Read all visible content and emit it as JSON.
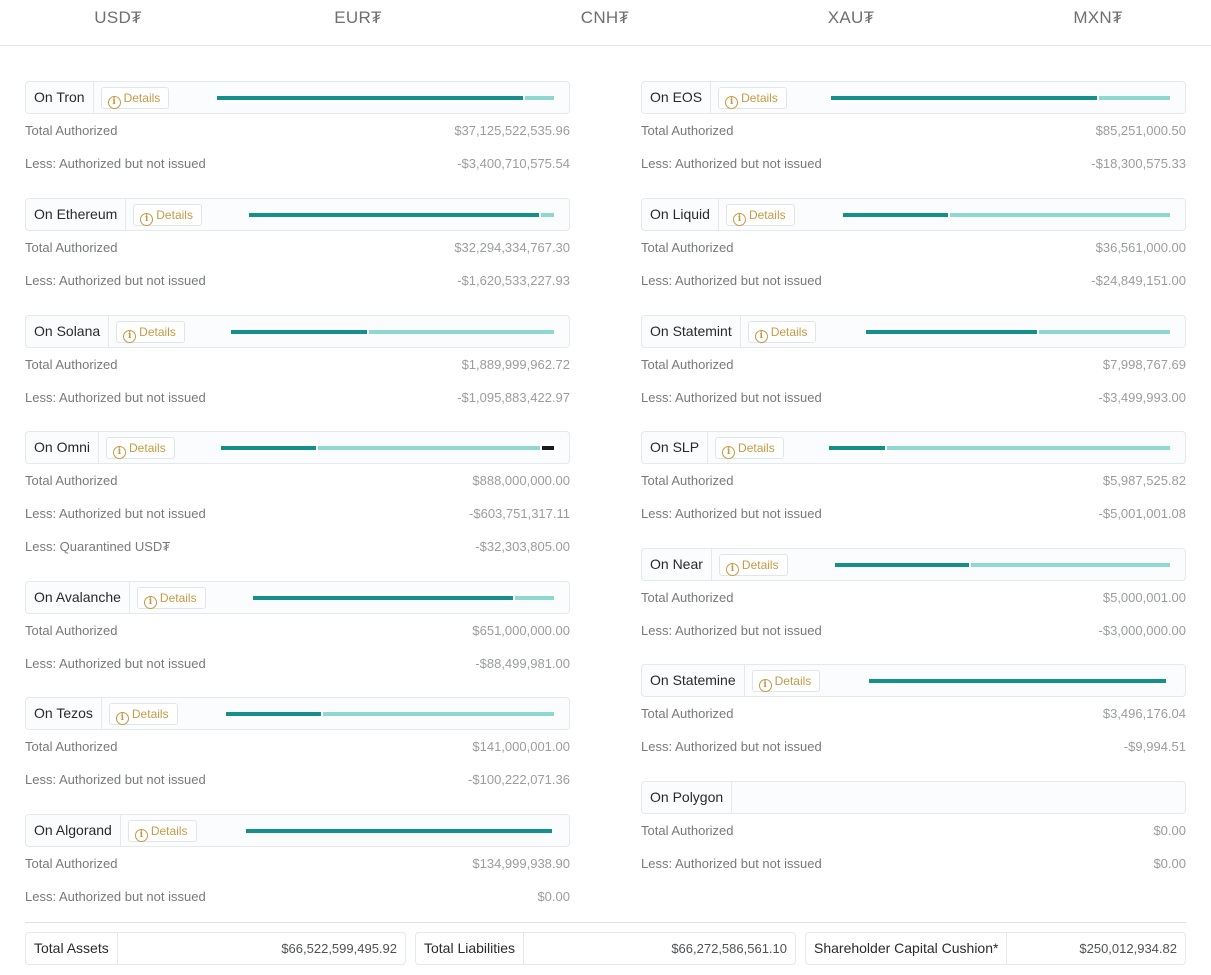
{
  "tabs": [
    {
      "label": "USD₮",
      "active": true
    },
    {
      "label": "EUR₮",
      "active": false
    },
    {
      "label": "CNH₮",
      "active": false
    },
    {
      "label": "XAU₮",
      "active": false
    },
    {
      "label": "MXN₮",
      "active": false
    }
  ],
  "details_label": "Details",
  "colors": {
    "issued": "#168f8a",
    "unissued": "#8fd8cf",
    "quarantine": "#1a1a1a",
    "details": "#c59a45"
  },
  "left_chains": [
    {
      "name": "On Tron",
      "issued_fraction": 0.908,
      "rows": [
        {
          "label": "Total Authorized",
          "value": "$37,125,522,535.96"
        },
        {
          "label": "Less: Authorized but not issued",
          "value": "-$3,400,710,575.54"
        }
      ]
    },
    {
      "name": "On Ethereum",
      "issued_fraction": 0.95,
      "rows": [
        {
          "label": "Total Authorized",
          "value": "$32,294,334,767.30"
        },
        {
          "label": "Less: Authorized but not issued",
          "value": "-$1,620,533,227.93"
        }
      ]
    },
    {
      "name": "On Solana",
      "issued_fraction": 0.42,
      "rows": [
        {
          "label": "Total Authorized",
          "value": "$1,889,999,962.72"
        },
        {
          "label": "Less: Authorized but not issued",
          "value": "-$1,095,883,422.97"
        }
      ]
    },
    {
      "name": "On Omni",
      "issued_fraction": 0.284,
      "quarantine_fraction": 0.036,
      "rows": [
        {
          "label": "Total Authorized",
          "value": "$888,000,000.00"
        },
        {
          "label": "Less: Authorized but not issued",
          "value": "-$603,751,317.11"
        },
        {
          "label": "Less: Quarantined USD₮",
          "value": "-$32,303,805.00"
        }
      ]
    },
    {
      "name": "On Avalanche",
      "issued_fraction": 0.864,
      "rows": [
        {
          "label": "Total Authorized",
          "value": "$651,000,000.00"
        },
        {
          "label": "Less: Authorized but not issued",
          "value": "-$88,499,981.00"
        }
      ]
    },
    {
      "name": "On Tezos",
      "issued_fraction": 0.289,
      "rows": [
        {
          "label": "Total Authorized",
          "value": "$141,000,001.00"
        },
        {
          "label": "Less: Authorized but not issued",
          "value": "-$100,222,071.36"
        }
      ]
    },
    {
      "name": "On Algorand",
      "issued_fraction": 1.0,
      "rows": [
        {
          "label": "Total Authorized",
          "value": "$134,999,938.90"
        },
        {
          "label": "Less: Authorized but not issued",
          "value": "$0.00"
        }
      ]
    }
  ],
  "right_chains": [
    {
      "name": "On EOS",
      "issued_fraction": 0.785,
      "rows": [
        {
          "label": "Total Authorized",
          "value": "$85,251,000.50"
        },
        {
          "label": "Less: Authorized but not issued",
          "value": "-$18,300,575.33"
        }
      ]
    },
    {
      "name": "On Liquid",
      "issued_fraction": 0.32,
      "rows": [
        {
          "label": "Total Authorized",
          "value": "$36,561,000.00"
        },
        {
          "label": "Less: Authorized but not issued",
          "value": "-$24,849,151.00"
        }
      ]
    },
    {
      "name": "On Statemint",
      "issued_fraction": 0.562,
      "rows": [
        {
          "label": "Total Authorized",
          "value": "$7,998,767.69"
        },
        {
          "label": "Less: Authorized but not issued",
          "value": "-$3,499,993.00"
        }
      ]
    },
    {
      "name": "On SLP",
      "issued_fraction": 0.165,
      "rows": [
        {
          "label": "Total Authorized",
          "value": "$5,987,525.82"
        },
        {
          "label": "Less: Authorized but not issued",
          "value": "-$5,001,001.08"
        }
      ]
    },
    {
      "name": "On Near",
      "issued_fraction": 0.4,
      "rows": [
        {
          "label": "Total Authorized",
          "value": "$5,000,001.00"
        },
        {
          "label": "Less: Authorized but not issued",
          "value": "-$3,000,000.00"
        }
      ]
    },
    {
      "name": "On Statemine",
      "issued_fraction": 0.997,
      "rows": [
        {
          "label": "Total Authorized",
          "value": "$3,496,176.04"
        },
        {
          "label": "Less: Authorized but not issued",
          "value": "-$9,994.51"
        }
      ]
    },
    {
      "name": "On Polygon",
      "no_details": true,
      "rows": [
        {
          "label": "Total Authorized",
          "value": "$0.00"
        },
        {
          "label": "Less: Authorized but not issued",
          "value": "$0.00"
        }
      ]
    }
  ],
  "totals": [
    {
      "label": "Total Assets",
      "value": "$66,522,599,495.92"
    },
    {
      "label": "Total Liabilities",
      "value": "$66,272,586,561.10"
    },
    {
      "label": "Shareholder Capital Cushion*",
      "value": "$250,012,934.82"
    }
  ]
}
